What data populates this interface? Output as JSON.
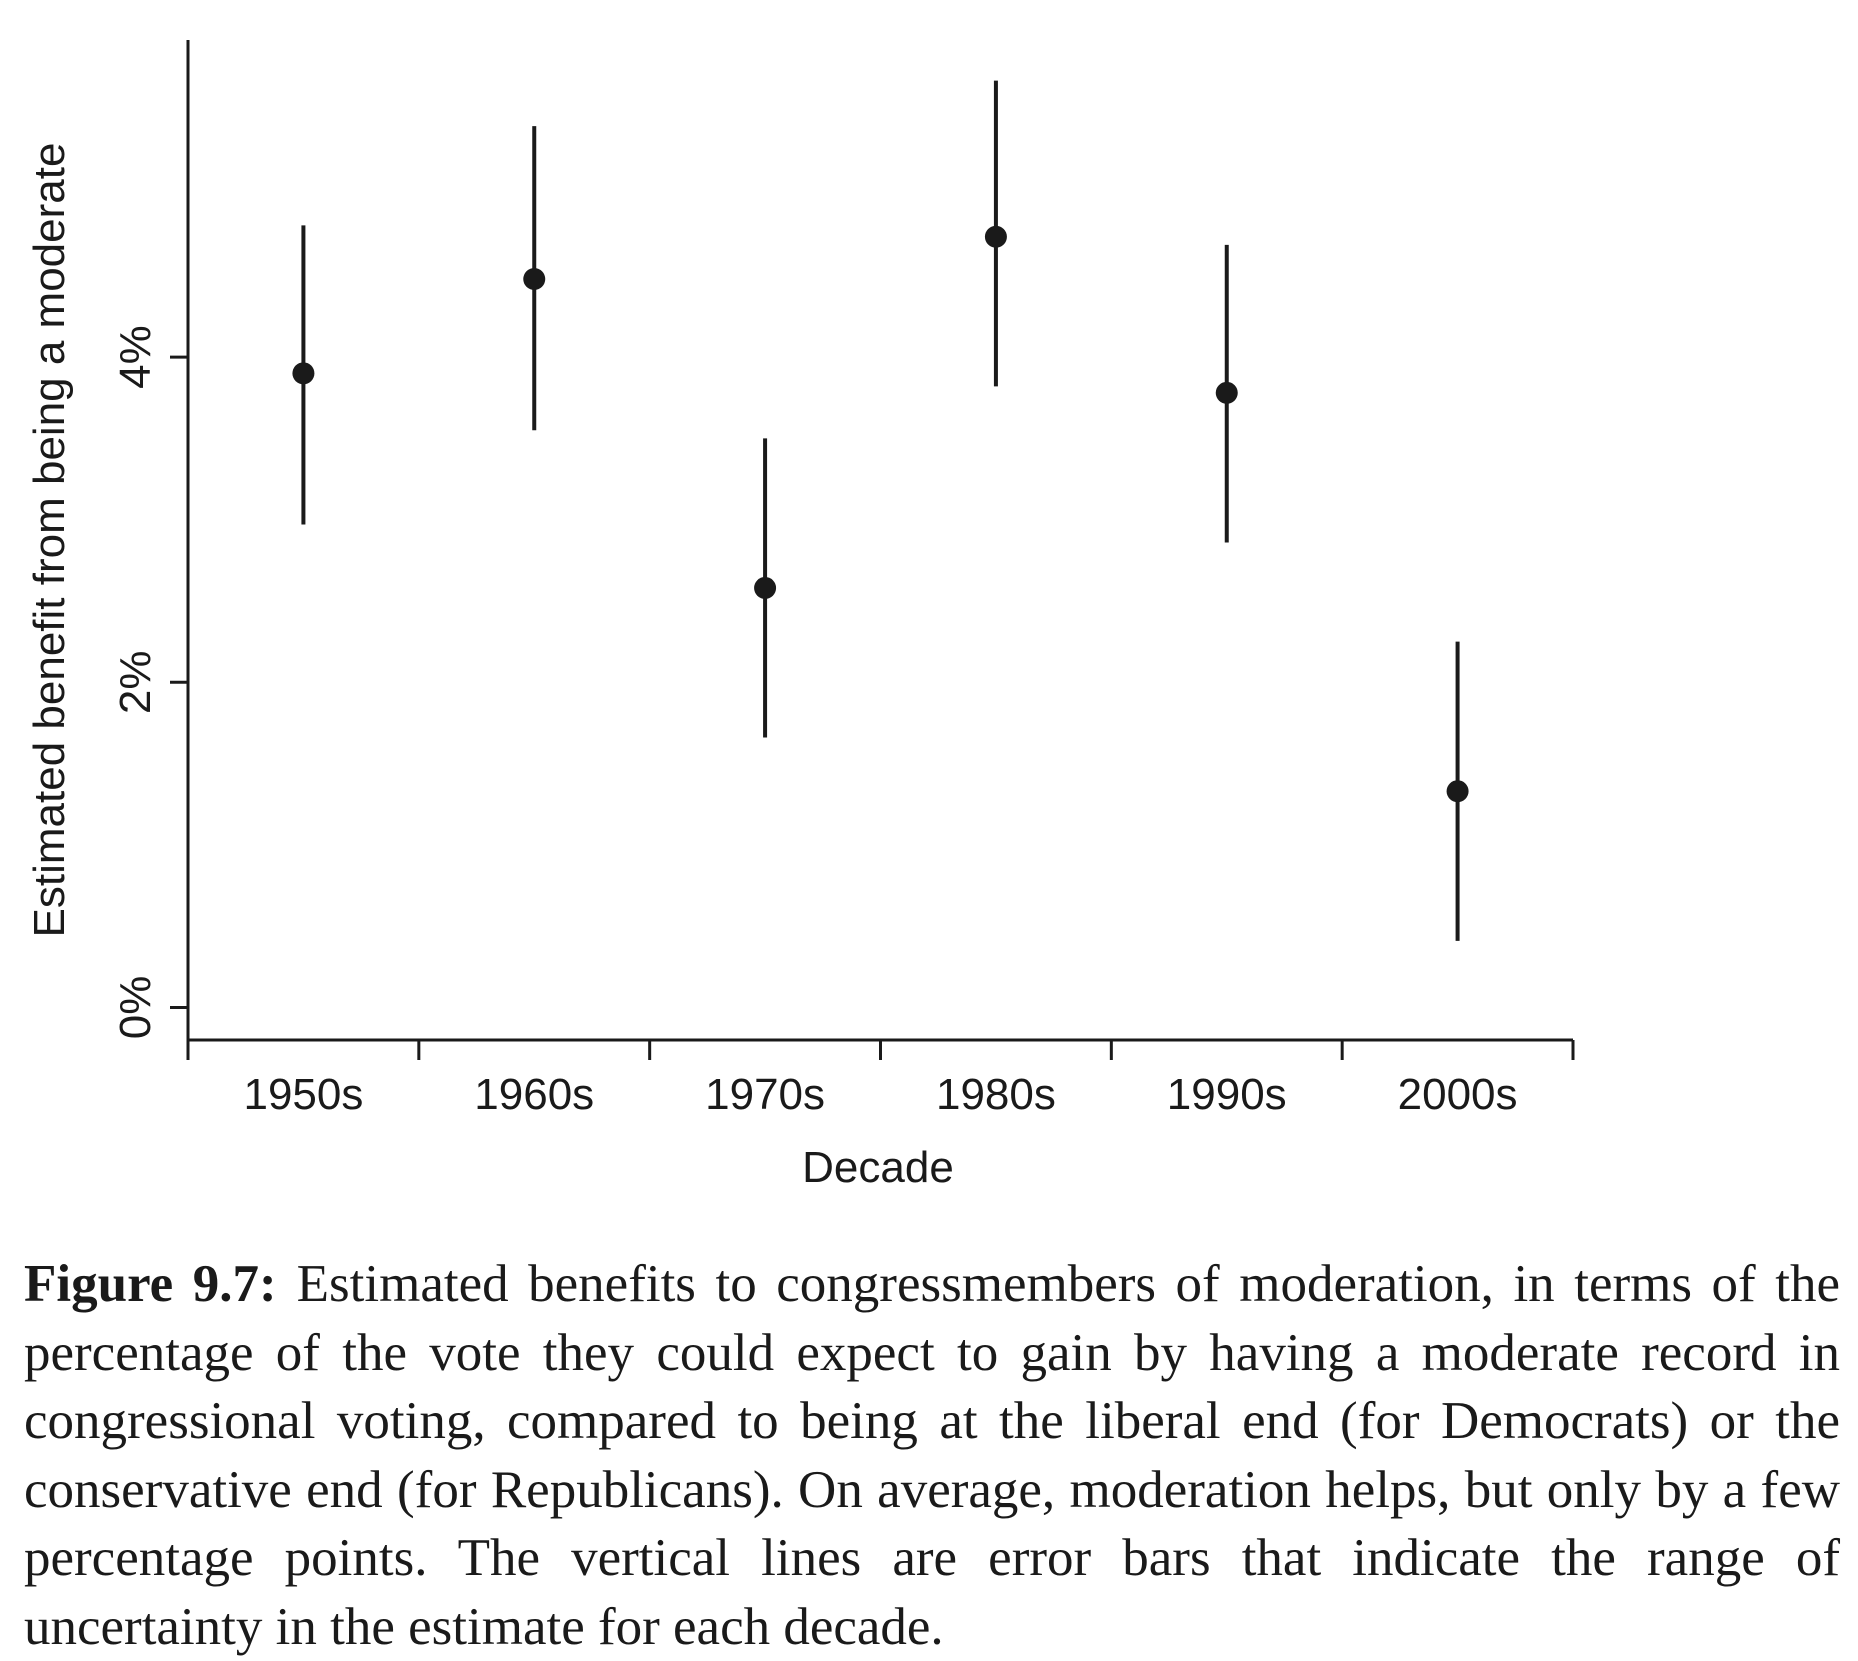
{
  "chart_data": {
    "type": "scatter",
    "xlabel": "Decade",
    "ylabel": "Estimated benefit from being a moderate",
    "categories": [
      "1950s",
      "1960s",
      "1970s",
      "1980s",
      "1990s",
      "2000s"
    ],
    "estimates": [
      3.9,
      4.48,
      2.58,
      4.74,
      3.78,
      1.33
    ],
    "lower": [
      2.97,
      3.55,
      1.66,
      3.82,
      2.86,
      0.41
    ],
    "upper": [
      4.81,
      5.42,
      3.5,
      5.7,
      4.69,
      2.25
    ],
    "y_ticks": [
      0,
      2,
      4
    ],
    "y_tick_labels": [
      "0%",
      "2%",
      "4%"
    ],
    "ylim": [
      -0.2,
      5.95
    ],
    "grid": false,
    "colors": {
      "ink": "#1a1a1a",
      "background": "#ffffff"
    }
  },
  "caption": {
    "label": "Figure 9.7:",
    "text": "Estimated benefits to congressmembers of moderation, in terms of the percentage of the vote they could expect to gain by having a moderate record in congressional voting, compared to being at the liberal end (for Democrats) or the conservative end (for Republicans). On average, moder­ation helps, but only by a few percentage points. The vertical lines are error bars that indicate the range of uncertainty in the estimate for each decade."
  }
}
